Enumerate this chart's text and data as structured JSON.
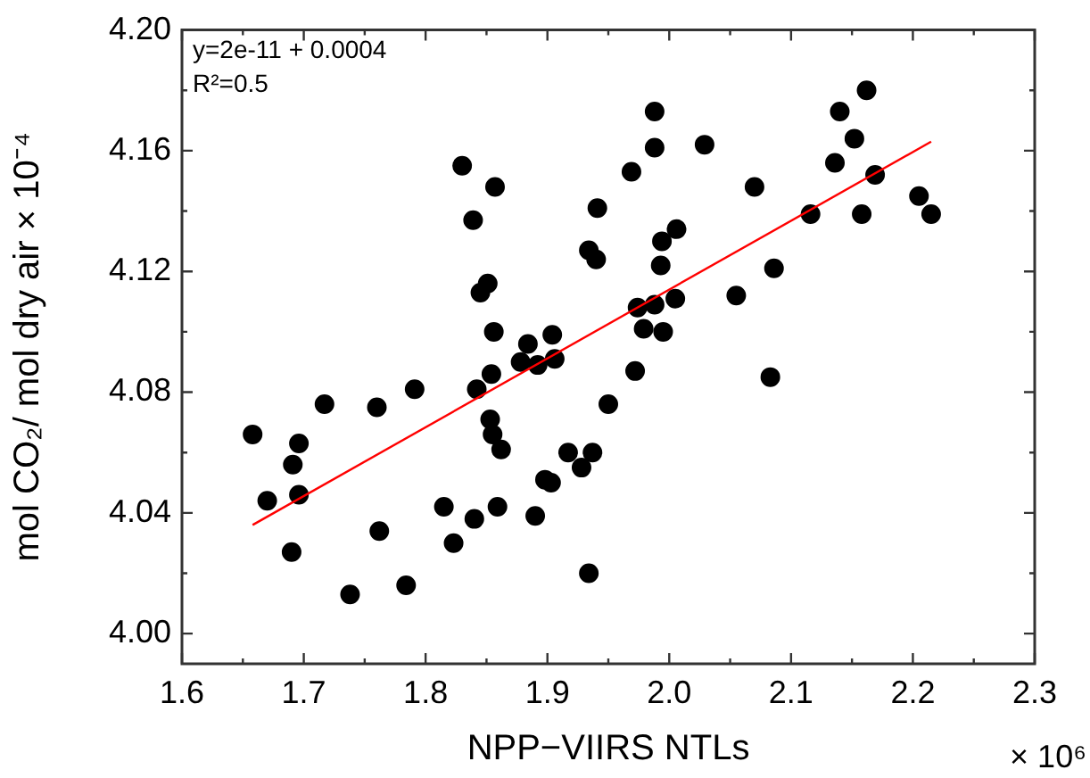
{
  "chart_data": {
    "type": "scatter",
    "xlabel": "NPP−VIIRS NTLs",
    "ylabel": "mol CO₂/ mol dry air × 10⁻⁴",
    "annotations": [
      "y=2e-11 + 0.0004",
      "R²=0.5",
      "× 10⁶"
    ],
    "xlim": [
      1.6,
      2.3
    ],
    "ylim": [
      3.99,
      4.2
    ],
    "xticks": [
      1.6,
      {
        "value": 1.65,
        "label": null
      },
      1.7,
      {
        "value": 1.75,
        "label": null
      },
      1.8,
      {
        "value": 1.85,
        "label": null
      },
      1.9,
      {
        "value": 1.95,
        "label": null
      },
      {
        "value": 2.0,
        "label": "2.0"
      },
      {
        "value": 2.05,
        "label": null
      },
      2.1,
      {
        "value": 2.15,
        "label": null
      },
      2.2,
      {
        "value": 2.25,
        "label": null
      },
      2.3
    ],
    "yticks": [
      {
        "value": 4.0,
        "label": "4.00"
      },
      {
        "value": 4.02,
        "label": null
      },
      4.04,
      {
        "value": 4.06,
        "label": null
      },
      4.08,
      {
        "value": 4.1,
        "label": null
      },
      4.12,
      {
        "value": 4.14,
        "label": null
      },
      4.16,
      {
        "value": 4.18,
        "label": null
      },
      {
        "value": 4.2,
        "label": "4.20"
      }
    ],
    "grid": false,
    "legend": false,
    "marker": "circle",
    "series": [
      {
        "color": "#000000",
        "x": [
          1.83,
          1.857,
          1.839,
          1.941,
          1.934,
          1.94,
          1.845,
          1.851,
          1.856,
          1.884,
          1.904,
          1.988,
          1.988,
          1.969,
          1.994,
          1.993,
          1.974,
          1.988,
          1.979,
          2.029,
          2.006,
          2.005,
          1.995,
          2.055,
          2.07,
          2.086,
          2.116,
          2.136,
          2.14,
          2.152,
          2.162,
          2.169,
          2.158,
          2.205,
          2.215,
          1.658,
          1.67,
          1.691,
          1.696,
          1.696,
          1.69,
          1.717,
          1.738,
          1.76,
          1.762,
          1.784,
          1.791,
          1.815,
          1.823,
          1.84,
          1.842,
          1.854,
          1.853,
          1.855,
          1.862,
          1.859,
          1.878,
          1.892,
          1.906,
          1.89,
          1.898,
          1.903,
          1.917,
          1.928,
          1.937,
          1.934,
          1.95,
          1.972,
          2.083
        ],
        "values": [
          4.155,
          4.148,
          4.137,
          4.141,
          4.127,
          4.124,
          4.113,
          4.116,
          4.1,
          4.096,
          4.099,
          4.173,
          4.161,
          4.153,
          4.13,
          4.122,
          4.108,
          4.109,
          4.101,
          4.162,
          4.134,
          4.111,
          4.1,
          4.112,
          4.148,
          4.121,
          4.139,
          4.156,
          4.173,
          4.164,
          4.18,
          4.152,
          4.139,
          4.145,
          4.139,
          4.066,
          4.044,
          4.056,
          4.063,
          4.046,
          4.027,
          4.076,
          4.013,
          4.075,
          4.034,
          4.016,
          4.081,
          4.042,
          4.03,
          4.038,
          4.081,
          4.086,
          4.071,
          4.066,
          4.061,
          4.042,
          4.09,
          4.089,
          4.091,
          4.039,
          4.051,
          4.05,
          4.06,
          4.055,
          4.06,
          4.02,
          4.076,
          4.087,
          4.085
        ]
      },
      {
        "type": "line",
        "color": "#ff0000",
        "marker": "none",
        "x": [
          1.658,
          2.215
        ],
        "values": [
          4.036,
          4.163
        ]
      }
    ]
  }
}
